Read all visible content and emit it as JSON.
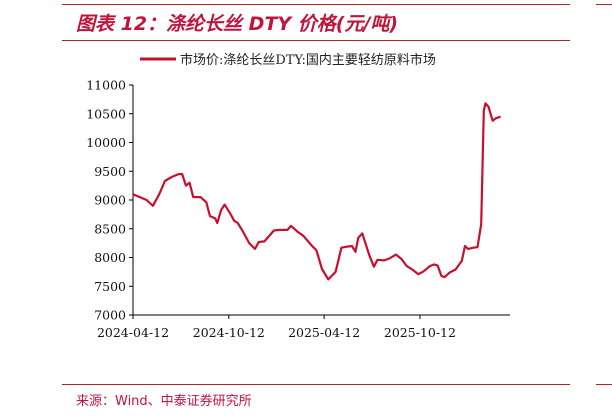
{
  "figure": {
    "title": "图表 12：涤纶长丝 DTY 价格(元/吨)",
    "source": "来源：Wind、中泰证券研究所"
  },
  "colors": {
    "accent": "#c0143c",
    "series": "#c8102e"
  },
  "chart_data": {
    "type": "line",
    "title": "",
    "xlabel": "",
    "ylabel": "",
    "ylim": [
      7000,
      11000
    ],
    "yticks": [
      "7000",
      "7500",
      "8000",
      "8500",
      "9000",
      "9500",
      "10000",
      "10500",
      "11000"
    ],
    "xticks": [
      "2024-04-12",
      "2024-10-12",
      "2025-04-12",
      "2025-10-12"
    ],
    "xlim": [
      "2024-04-12",
      "2026-04-02"
    ],
    "grid": false,
    "legend": "top",
    "series": [
      {
        "name": "市场价:涤纶长丝DTY:国内主要轻纺原料市场",
        "points": [
          [
            "2024-04-12",
            9100
          ],
          [
            "2024-04-25",
            9050
          ],
          [
            "2024-05-08",
            9000
          ],
          [
            "2024-05-20",
            8900
          ],
          [
            "2024-06-01",
            9100
          ],
          [
            "2024-06-12",
            9330
          ],
          [
            "2024-06-25",
            9400
          ],
          [
            "2024-07-08",
            9450
          ],
          [
            "2024-07-15",
            9450
          ],
          [
            "2024-07-22",
            9250
          ],
          [
            "2024-07-29",
            9300
          ],
          [
            "2024-08-05",
            9050
          ],
          [
            "2024-08-19",
            9050
          ],
          [
            "2024-08-30",
            8960
          ],
          [
            "2024-09-06",
            8720
          ],
          [
            "2024-09-16",
            8680
          ],
          [
            "2024-09-20",
            8600
          ],
          [
            "2024-09-27",
            8820
          ],
          [
            "2024-10-04",
            8920
          ],
          [
            "2024-10-15",
            8760
          ],
          [
            "2024-10-22",
            8640
          ],
          [
            "2024-10-29",
            8600
          ],
          [
            "2024-11-08",
            8450
          ],
          [
            "2024-11-20",
            8250
          ],
          [
            "2024-12-01",
            8150
          ],
          [
            "2024-12-08",
            8270
          ],
          [
            "2024-12-19",
            8280
          ],
          [
            "2025-01-06",
            8470
          ],
          [
            "2025-01-18",
            8480
          ],
          [
            "2025-02-01",
            8480
          ],
          [
            "2025-02-08",
            8550
          ],
          [
            "2025-02-20",
            8450
          ],
          [
            "2025-03-03",
            8380
          ],
          [
            "2025-03-20",
            8200
          ],
          [
            "2025-03-28",
            8130
          ],
          [
            "2025-04-08",
            7800
          ],
          [
            "2025-04-20",
            7620
          ],
          [
            "2025-05-04",
            7750
          ],
          [
            "2025-05-15",
            8170
          ],
          [
            "2025-05-26",
            8190
          ],
          [
            "2025-06-04",
            8200
          ],
          [
            "2025-06-11",
            8100
          ],
          [
            "2025-06-16",
            8340
          ],
          [
            "2025-06-24",
            8420
          ],
          [
            "2025-07-07",
            8050
          ],
          [
            "2025-07-16",
            7840
          ],
          [
            "2025-07-23",
            7960
          ],
          [
            "2025-08-05",
            7950
          ],
          [
            "2025-08-16",
            7990
          ],
          [
            "2025-08-27",
            8050
          ],
          [
            "2025-09-06",
            7980
          ],
          [
            "2025-09-17",
            7850
          ],
          [
            "2025-09-29",
            7780
          ],
          [
            "2025-10-09",
            7710
          ],
          [
            "2025-10-19",
            7760
          ],
          [
            "2025-10-31",
            7850
          ],
          [
            "2025-11-08",
            7880
          ],
          [
            "2025-11-15",
            7860
          ],
          [
            "2025-11-22",
            7680
          ],
          [
            "2025-11-28",
            7660
          ],
          [
            "2025-12-08",
            7740
          ],
          [
            "2025-12-19",
            7790
          ],
          [
            "2025-12-31",
            7940
          ],
          [
            "2026-01-06",
            8200
          ],
          [
            "2026-01-12",
            8150
          ],
          [
            "2026-01-22",
            8170
          ],
          [
            "2026-01-30",
            8180
          ],
          [
            "2026-02-06",
            8580
          ],
          [
            "2026-02-11",
            10550
          ],
          [
            "2026-02-14",
            10680
          ],
          [
            "2026-02-20",
            10620
          ],
          [
            "2026-02-28",
            10380
          ],
          [
            "2026-03-06",
            10420
          ],
          [
            "2026-03-15",
            10450
          ]
        ]
      }
    ]
  }
}
